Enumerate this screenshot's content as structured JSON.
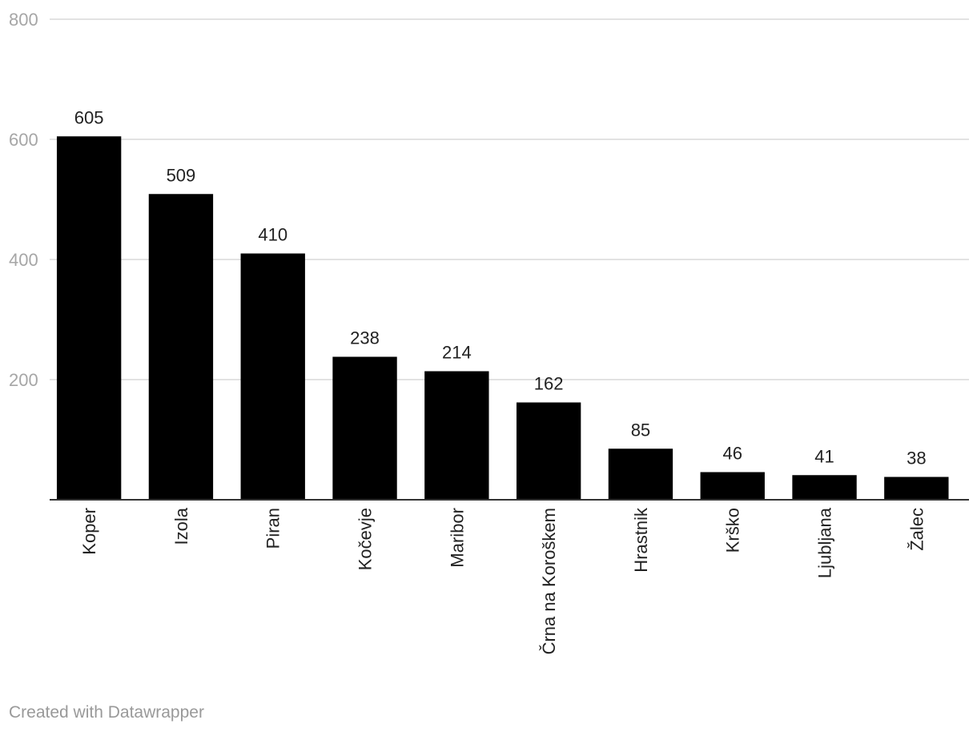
{
  "chart_data": {
    "type": "bar",
    "categories": [
      "Koper",
      "Izola",
      "Piran",
      "Kočevje",
      "Maribor",
      "Črna na Koroškem",
      "Hrastnik",
      "Krško",
      "Ljubljana",
      "Žalec"
    ],
    "values": [
      605,
      509,
      410,
      238,
      214,
      162,
      85,
      46,
      41,
      38
    ],
    "ylim": [
      0,
      800
    ],
    "yticks": [
      200,
      400,
      600,
      800
    ],
    "grid": true,
    "bar_color": "#000000",
    "data_labels": true
  },
  "footer": {
    "credit": "Created with Datawrapper"
  }
}
